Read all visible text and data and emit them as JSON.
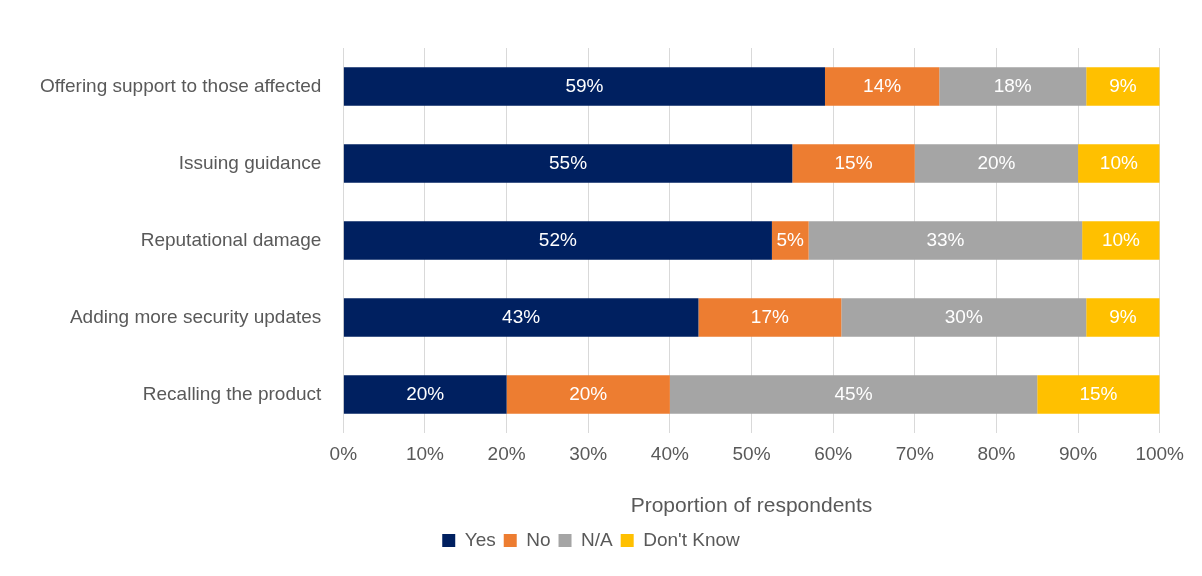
{
  "chart_data": {
    "type": "bar",
    "orientation": "horizontal",
    "stacked": true,
    "xlabel": "Proportion of respondents",
    "categories": [
      "Offering support to those affected",
      "Issuing guidance",
      "Reputational damage",
      "Adding more security updates",
      "Recalling the product"
    ],
    "series": [
      {
        "name": "Yes",
        "color": "#002060",
        "values": [
          59,
          55,
          52.5,
          43.5,
          20
        ],
        "value_labels": [
          "59%",
          "55%",
          "52%",
          "43%",
          "20%"
        ]
      },
      {
        "name": "No",
        "color": "#ed7d31",
        "values": [
          14,
          15,
          4.5,
          17.5,
          20
        ],
        "value_labels": [
          "14%",
          "15%",
          "5%",
          "17%",
          "20%"
        ]
      },
      {
        "name": "N/A",
        "color": "#a5a5a5",
        "values": [
          18,
          20,
          33.5,
          30,
          45
        ],
        "value_labels": [
          "18%",
          "20%",
          "33%",
          "30%",
          "45%"
        ]
      },
      {
        "name": "Don't Know",
        "color": "#ffc000",
        "values": [
          9,
          10,
          9.5,
          9,
          15
        ],
        "value_labels": [
          "9%",
          "10%",
          "10%",
          "9%",
          "15%"
        ]
      }
    ],
    "xlim": [
      0,
      100
    ],
    "xticks": [
      {
        "value": 0,
        "label": "0%"
      },
      {
        "value": 10,
        "label": "10%"
      },
      {
        "value": 20,
        "label": "20%"
      },
      {
        "value": 30,
        "label": "30%"
      },
      {
        "value": 40,
        "label": "40%"
      },
      {
        "value": 50,
        "label": "50%"
      },
      {
        "value": 60,
        "label": "60%"
      },
      {
        "value": 70,
        "label": "70%"
      },
      {
        "value": 80,
        "label": "80%"
      },
      {
        "value": 90,
        "label": "90%"
      },
      {
        "value": 100,
        "label": "100%"
      }
    ],
    "grid": "x",
    "legend": "bottom"
  }
}
